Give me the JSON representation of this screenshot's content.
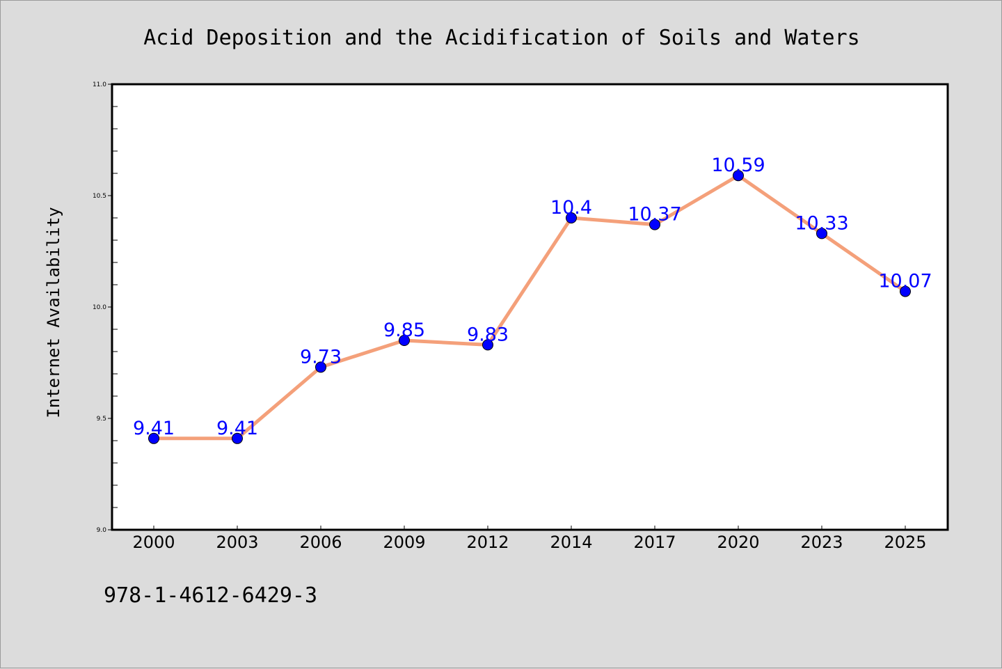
{
  "chart_data": {
    "type": "line",
    "title": "Acid Deposition and the Acidification of Soils and Waters",
    "xlabel": "",
    "ylabel": "Internet Availability",
    "categories": [
      "2000",
      "2003",
      "2006",
      "2009",
      "2012",
      "2014",
      "2017",
      "2020",
      "2023",
      "2025"
    ],
    "series": [
      {
        "values": [
          9.41,
          9.41,
          9.73,
          9.85,
          9.83,
          10.4,
          10.37,
          10.59,
          10.33,
          10.07
        ],
        "data_labels": [
          "9.41",
          "9.41",
          "9.73",
          "9.85",
          "9.83",
          "10.4",
          "10.37",
          "10.59",
          "10.33",
          "10.07"
        ],
        "line_color": "#f4a07a",
        "marker_color": "#0000ff",
        "label_color": "#0000ff"
      }
    ],
    "ylim": [
      9.0,
      11.0
    ],
    "yticks": [
      9.0,
      9.5,
      10.0,
      10.5,
      11.0
    ],
    "ytick_labels": [
      "9.0",
      "9.5",
      "10.0",
      "10.5",
      "11.0"
    ],
    "grid": false,
    "legend": "none"
  },
  "annotations": {
    "isbn": "978-1-4612-6429-3"
  },
  "colors": {
    "background": "#dcdcdc",
    "plot_background": "#ffffff",
    "axis": "#000000"
  }
}
